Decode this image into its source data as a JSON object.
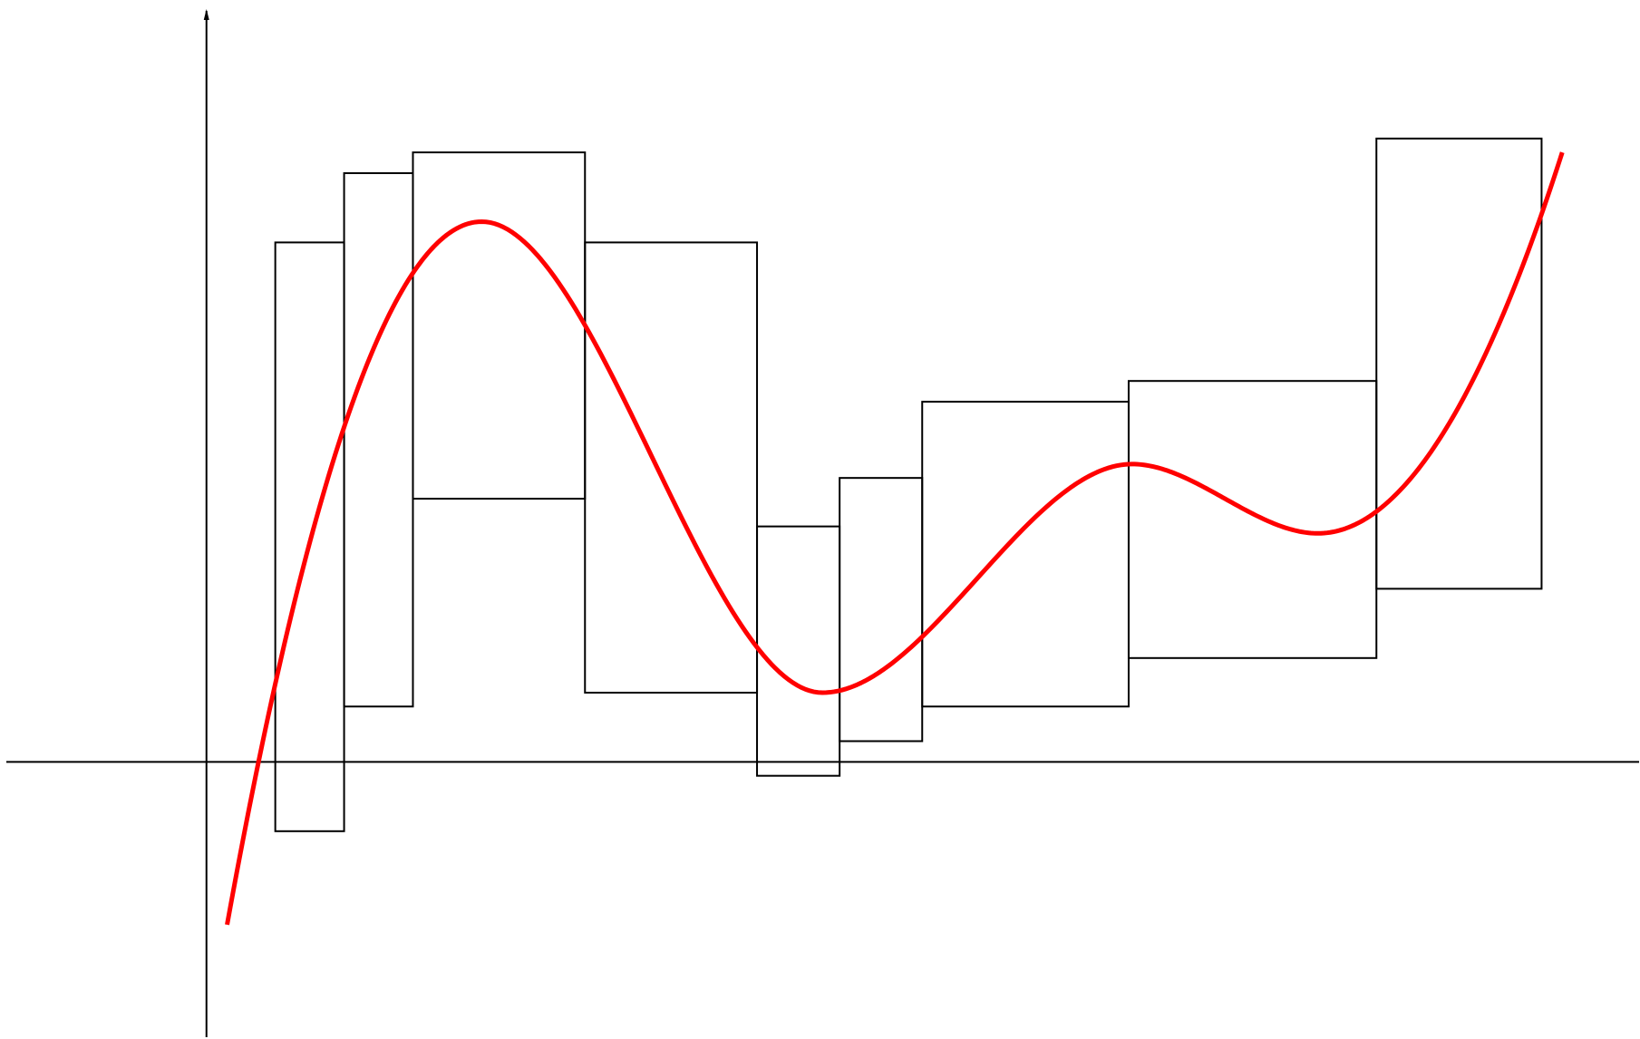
{
  "colors": {
    "background": "#ffffff",
    "boxes": "#000000",
    "axes": "#000000",
    "curve": "#ff0000"
  },
  "chart_data": {
    "type": "diagram",
    "title": "",
    "xlabel": "",
    "ylabel": "",
    "grid": false,
    "xlim": [
      -3,
      20.83
    ],
    "ylim": [
      -4,
      11
    ],
    "boxes": [
      {
        "x0": 1.0,
        "x1": 2.0,
        "ymin": -1.0,
        "ymax": 7.5
      },
      {
        "x0": 2.0,
        "x1": 3.0,
        "ymin": 0.8,
        "ymax": 8.5
      },
      {
        "x0": 3.0,
        "x1": 5.5,
        "ymin": 3.8,
        "ymax": 8.8
      },
      {
        "x0": 5.5,
        "x1": 8.0,
        "ymin": 1.0,
        "ymax": 7.5
      },
      {
        "x0": 8.0,
        "x1": 9.2,
        "ymin": -0.2,
        "ymax": 3.4
      },
      {
        "x0": 9.2,
        "x1": 10.4,
        "ymin": 0.3,
        "ymax": 4.1
      },
      {
        "x0": 10.4,
        "x1": 13.4,
        "ymin": 0.8,
        "ymax": 5.2
      },
      {
        "x0": 13.4,
        "x1": 17.0,
        "ymin": 1.5,
        "ymax": 5.5
      },
      {
        "x0": 17.0,
        "x1": 19.4,
        "ymin": 2.5,
        "ymax": 9.0
      }
    ],
    "curve": {
      "name": "",
      "x_range": [
        0.3,
        19.7
      ],
      "extrema": [
        {
          "x": 4.0,
          "y": 7.8,
          "kind": "max"
        },
        {
          "x": 8.95,
          "y": 1.0,
          "kind": "min"
        },
        {
          "x": 13.45,
          "y": 4.3,
          "kind": "max"
        },
        {
          "x": 16.15,
          "y": 3.3,
          "kind": "min"
        }
      ],
      "endpoints": [
        {
          "x": 0.3,
          "y": -2.35
        },
        {
          "x": 19.7,
          "y": 8.8
        }
      ]
    }
  }
}
